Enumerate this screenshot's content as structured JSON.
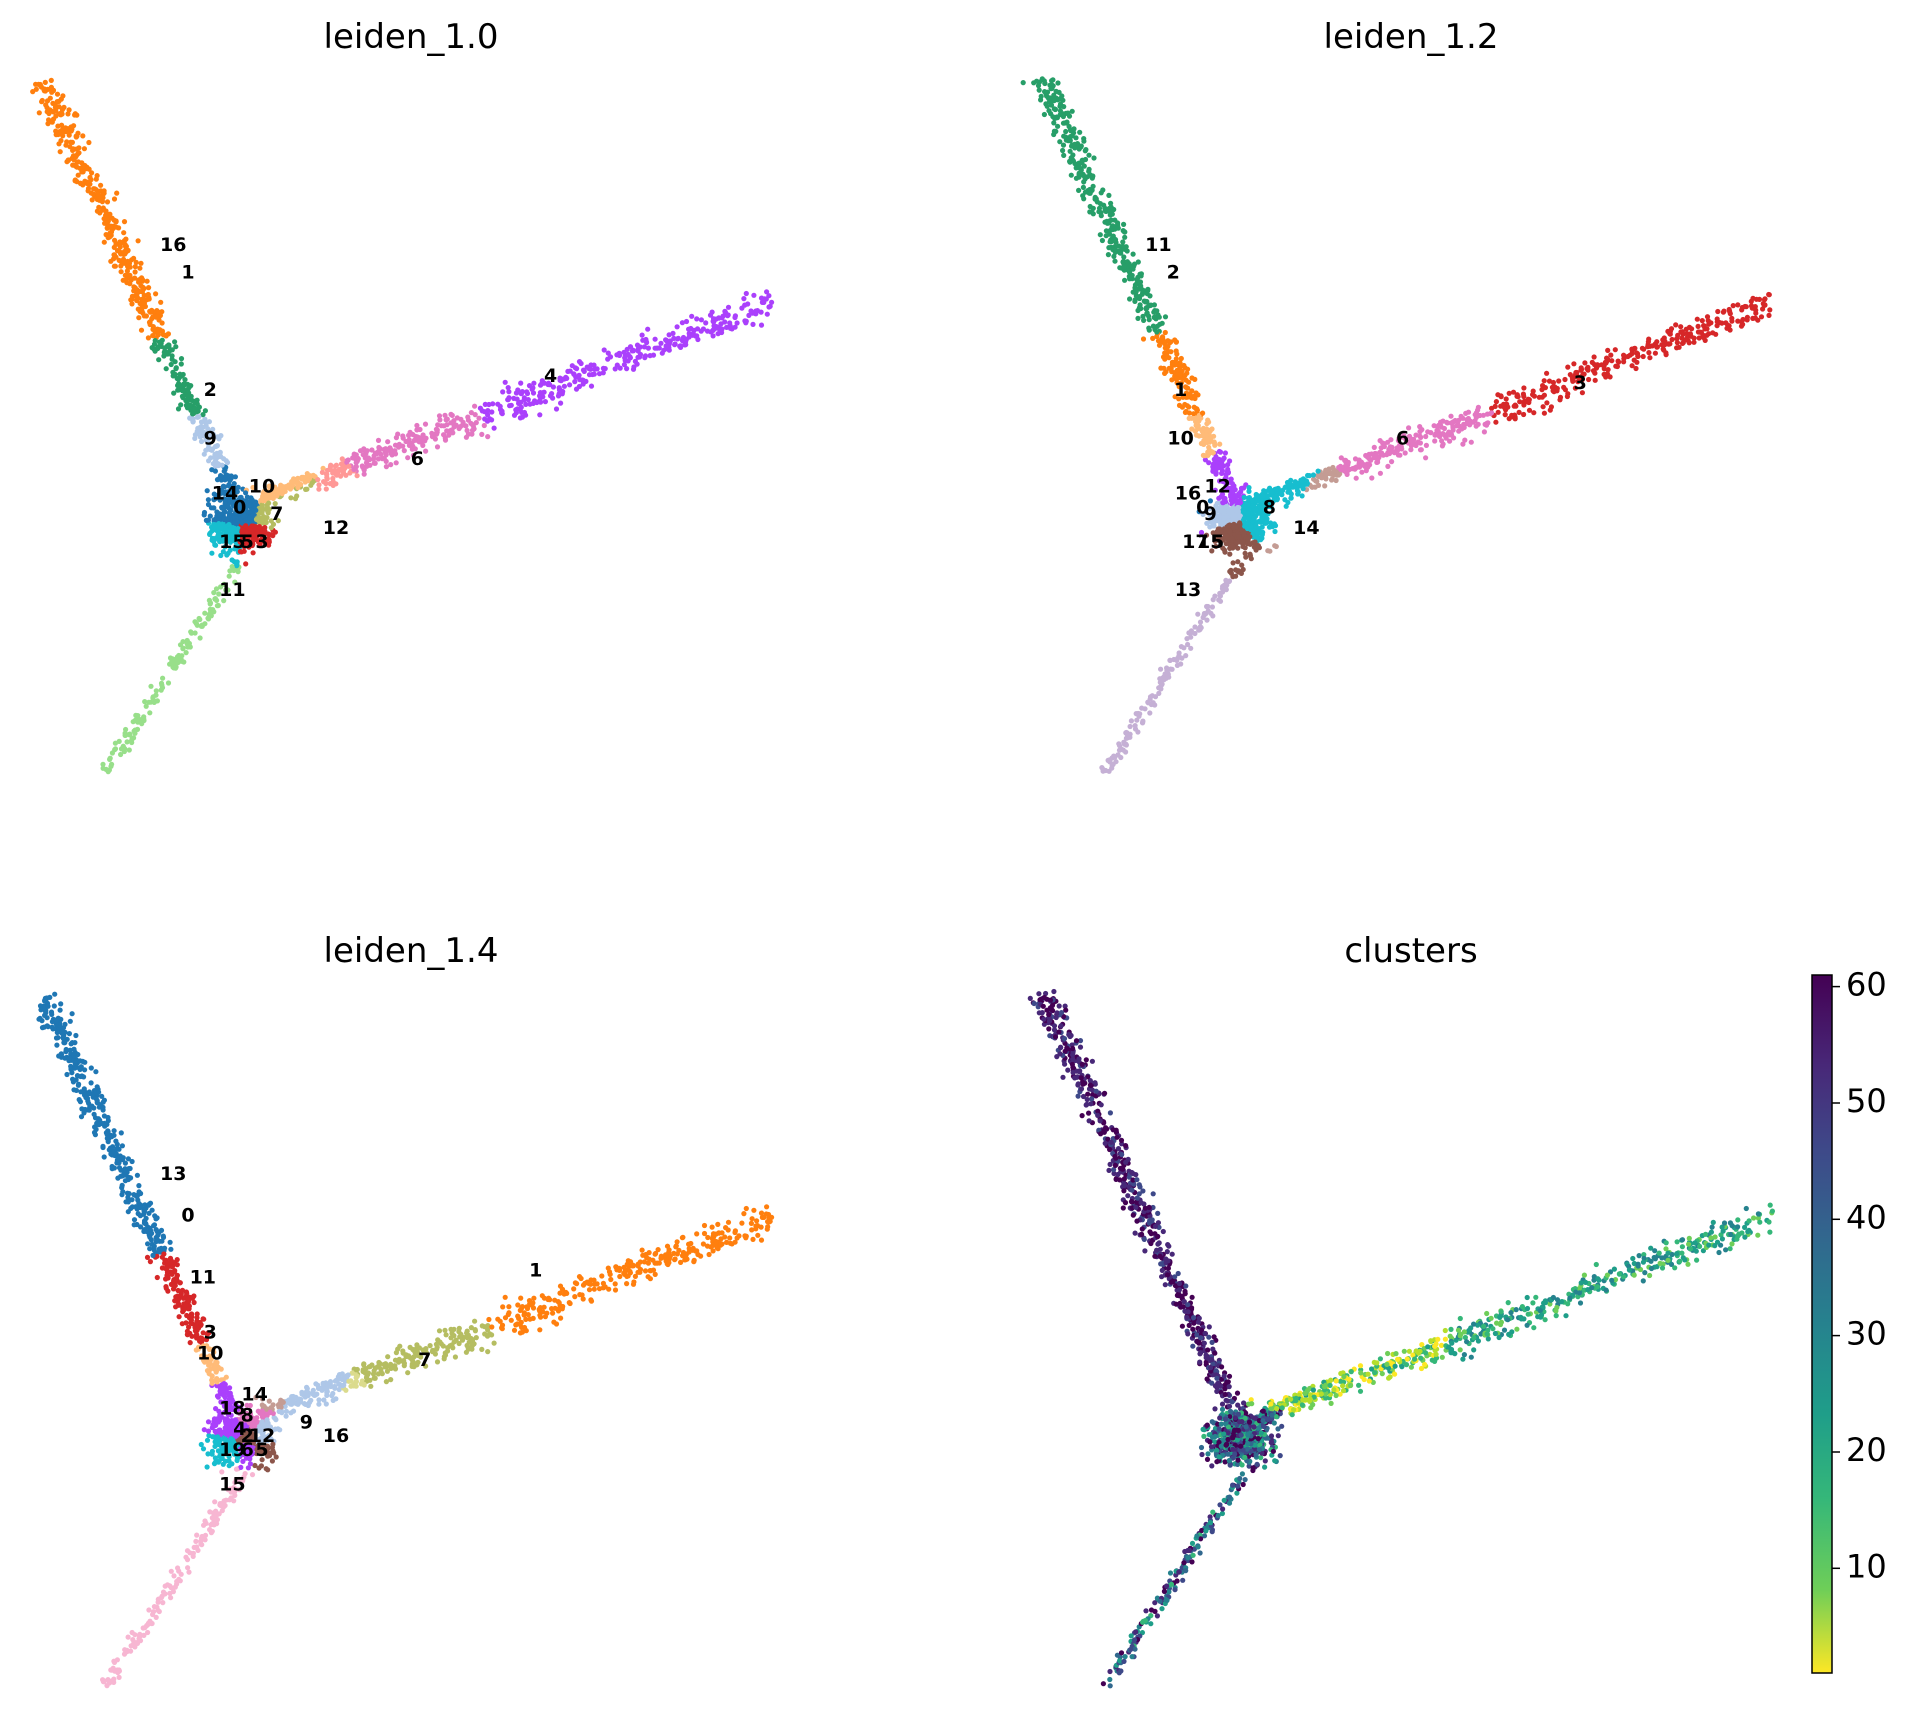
{
  "chart_data": [
    {
      "type": "scatter",
      "title": "leiden_1.0",
      "color_mode": "categorical",
      "cluster_labels": [
        {
          "label": "16",
          "x": 0.18,
          "y": 0.76,
          "color": "#ff7f0e"
        },
        {
          "label": "1",
          "x": 0.2,
          "y": 0.72,
          "color": "#ff7f0e"
        },
        {
          "label": "2",
          "x": 0.23,
          "y": 0.55,
          "color": "#279e68"
        },
        {
          "label": "9",
          "x": 0.23,
          "y": 0.48,
          "color": "#aec7e8"
        },
        {
          "label": "10",
          "x": 0.3,
          "y": 0.41,
          "color": "#ffbb78"
        },
        {
          "label": "14",
          "x": 0.25,
          "y": 0.4,
          "color": "#1f77b4"
        },
        {
          "label": "0",
          "x": 0.27,
          "y": 0.38,
          "color": "#1f77b4"
        },
        {
          "label": "7",
          "x": 0.32,
          "y": 0.37,
          "color": "#b5bd61"
        },
        {
          "label": "12",
          "x": 0.4,
          "y": 0.35,
          "color": "#ff9896"
        },
        {
          "label": "15",
          "x": 0.26,
          "y": 0.33,
          "color": "#17becf"
        },
        {
          "label": "5",
          "x": 0.28,
          "y": 0.33,
          "color": "#d62728"
        },
        {
          "label": "3",
          "x": 0.3,
          "y": 0.33,
          "color": "#d62728"
        },
        {
          "label": "11",
          "x": 0.26,
          "y": 0.26,
          "color": "#98df8a"
        },
        {
          "label": "6",
          "x": 0.51,
          "y": 0.45,
          "color": "#e377c2"
        },
        {
          "label": "4",
          "x": 0.69,
          "y": 0.57,
          "color": "#aa40fc"
        }
      ]
    },
    {
      "type": "scatter",
      "title": "leiden_1.2",
      "color_mode": "categorical",
      "cluster_labels": [
        {
          "label": "11",
          "x": 0.16,
          "y": 0.76,
          "color": "#279e68"
        },
        {
          "label": "2",
          "x": 0.18,
          "y": 0.72,
          "color": "#279e68"
        },
        {
          "label": "1",
          "x": 0.19,
          "y": 0.55,
          "color": "#ff7f0e"
        },
        {
          "label": "10",
          "x": 0.19,
          "y": 0.48,
          "color": "#ffbb78"
        },
        {
          "label": "12",
          "x": 0.24,
          "y": 0.41,
          "color": "#aa40fc"
        },
        {
          "label": "16",
          "x": 0.2,
          "y": 0.4,
          "color": "#1f77b4"
        },
        {
          "label": "0",
          "x": 0.22,
          "y": 0.38,
          "color": "#1f77b4"
        },
        {
          "label": "9",
          "x": 0.23,
          "y": 0.37,
          "color": "#aec7e8"
        },
        {
          "label": "8",
          "x": 0.31,
          "y": 0.38,
          "color": "#17becf"
        },
        {
          "label": "14",
          "x": 0.36,
          "y": 0.35,
          "color": "#c49c94"
        },
        {
          "label": "17",
          "x": 0.21,
          "y": 0.33,
          "color": "#aa40fc"
        },
        {
          "label": "15",
          "x": 0.23,
          "y": 0.33,
          "color": "#8c564b"
        },
        {
          "label": "5",
          "x": 0.24,
          "y": 0.33,
          "color": "#8c564b"
        },
        {
          "label": "13",
          "x": 0.2,
          "y": 0.26,
          "color": "#c5b0d5"
        },
        {
          "label": "6",
          "x": 0.49,
          "y": 0.48,
          "color": "#e377c2"
        },
        {
          "label": "3",
          "x": 0.73,
          "y": 0.56,
          "color": "#d62728"
        }
      ]
    },
    {
      "type": "scatter",
      "title": "leiden_1.4",
      "color_mode": "categorical",
      "cluster_labels": [
        {
          "label": "13",
          "x": 0.18,
          "y": 0.74,
          "color": "#1f77b4"
        },
        {
          "label": "0",
          "x": 0.2,
          "y": 0.68,
          "color": "#1f77b4"
        },
        {
          "label": "11",
          "x": 0.22,
          "y": 0.59,
          "color": "#d62728"
        },
        {
          "label": "3",
          "x": 0.23,
          "y": 0.51,
          "color": "#d62728"
        },
        {
          "label": "10",
          "x": 0.23,
          "y": 0.48,
          "color": "#ffbb78"
        },
        {
          "label": "14",
          "x": 0.29,
          "y": 0.42,
          "color": "#c49c94"
        },
        {
          "label": "18",
          "x": 0.26,
          "y": 0.4,
          "color": "#aa40fc"
        },
        {
          "label": "8",
          "x": 0.28,
          "y": 0.39,
          "color": "#e377c2"
        },
        {
          "label": "4",
          "x": 0.27,
          "y": 0.37,
          "color": "#aa40fc"
        },
        {
          "label": "2",
          "x": 0.28,
          "y": 0.36,
          "color": "#8c564b"
        },
        {
          "label": "12",
          "x": 0.3,
          "y": 0.36,
          "color": "#aec7e8"
        },
        {
          "label": "9",
          "x": 0.36,
          "y": 0.38,
          "color": "#aec7e8"
        },
        {
          "label": "16",
          "x": 0.4,
          "y": 0.36,
          "color": "#dbdb8d"
        },
        {
          "label": "19",
          "x": 0.26,
          "y": 0.34,
          "color": "#17becf"
        },
        {
          "label": "6",
          "x": 0.28,
          "y": 0.34,
          "color": "#aa40fc"
        },
        {
          "label": "5",
          "x": 0.3,
          "y": 0.34,
          "color": "#8c564b"
        },
        {
          "label": "15",
          "x": 0.26,
          "y": 0.29,
          "color": "#f7b6d2"
        },
        {
          "label": "7",
          "x": 0.52,
          "y": 0.47,
          "color": "#b5bd61"
        },
        {
          "label": "1",
          "x": 0.67,
          "y": 0.6,
          "color": "#ff7f0e"
        }
      ]
    },
    {
      "type": "scatter",
      "title": "clusters",
      "color_mode": "continuous",
      "colormap": "viridis_r",
      "colorbar": {
        "min": 1,
        "max": 61,
        "ticks": [
          "10",
          "20",
          "30",
          "40",
          "50",
          "60"
        ]
      }
    }
  ]
}
